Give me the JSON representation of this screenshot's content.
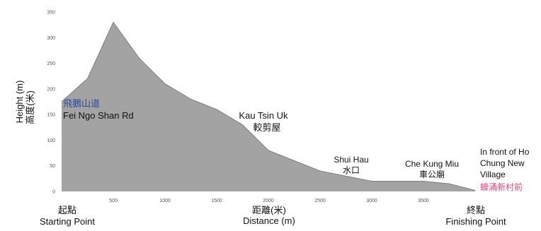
{
  "chart_data": {
    "type": "area",
    "xlabel_cn": "距離(米)",
    "xlabel": "Distance (m)",
    "ylabel": "Height (m)",
    "ylabel_cn": "高度(米)",
    "xlim": [
      0,
      4000
    ],
    "ylim": [
      0,
      350
    ],
    "xticks": [
      500,
      1000,
      1500,
      2000,
      2500,
      3000,
      3500
    ],
    "yticks": [
      0,
      50,
      100,
      150,
      200,
      250,
      300,
      350
    ],
    "grid": false,
    "fill_color": "#a3a3a3",
    "line_color": "#7f7f7f",
    "series": [
      {
        "x": [
          0,
          250,
          500,
          750,
          1000,
          1250,
          1500,
          1750,
          2000,
          2250,
          2500,
          2750,
          3000,
          3250,
          3500,
          3750,
          4000
        ],
        "values": [
          175,
          220,
          330,
          260,
          210,
          180,
          160,
          130,
          80,
          60,
          40,
          30,
          20,
          20,
          20,
          15,
          2
        ]
      }
    ],
    "start_label_cn": "起點",
    "start_label": "Starting Point",
    "end_label_cn": "終點",
    "end_label": "Finishing Point",
    "waypoints": [
      {
        "name": "Fei Ngo Shan Rd",
        "name_cn": "飛鵝山道",
        "name_cn_color": "#2e4a9e",
        "x": 0
      },
      {
        "name": "Kau Tsin Uk",
        "name_cn": "較剪屋",
        "x": 1750
      },
      {
        "name": "Shui Hau",
        "name_cn": "水口",
        "x": 2750
      },
      {
        "name": "Che Kung Miu",
        "name_cn": "車公廟",
        "x": 3500
      },
      {
        "name": "In front of Ho Chung New Village",
        "name_lines": [
          "In front of Ho",
          "Chung New",
          "Village"
        ],
        "name_cn": "蠔涌新村前",
        "name_cn_color": "#e0457b",
        "x": 4000
      }
    ]
  }
}
